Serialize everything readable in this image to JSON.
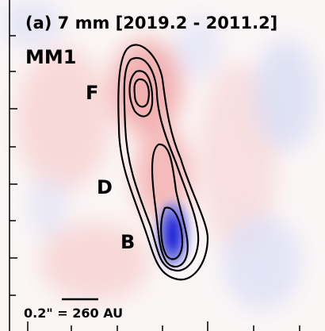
{
  "title": "(a) 7 mm [2019.2 - 2011.2]",
  "source": "MM1",
  "labels": [
    "F",
    "D",
    "B"
  ],
  "scale_bar": "0.2\" = 260 AU"
}
